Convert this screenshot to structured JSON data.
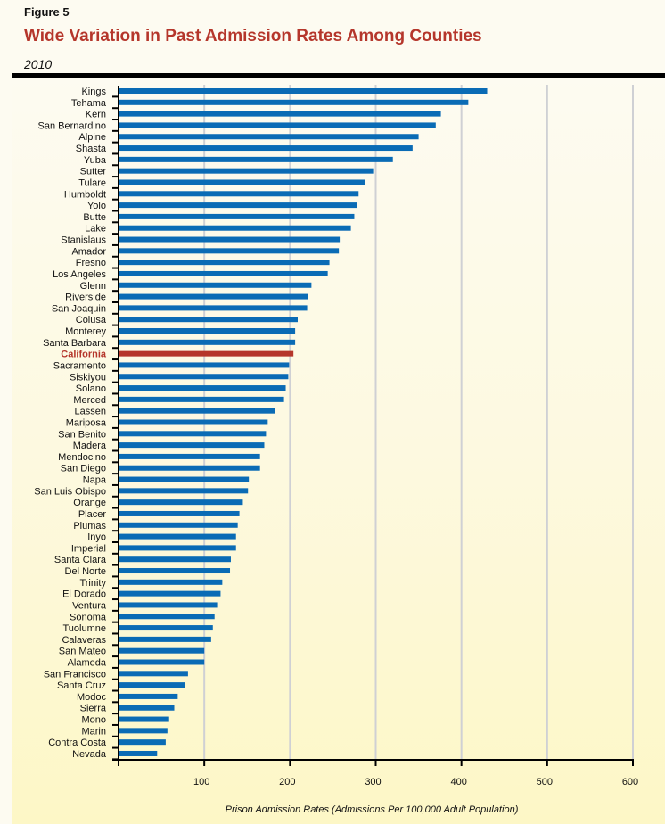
{
  "figure_label": "Figure 5",
  "title": "Wide Variation in Past Admission Rates Among Counties",
  "subtitle": "2010",
  "colors": {
    "bar": "#0a6bb5",
    "highlight": "#b5362b",
    "grid": "#cfd0d4",
    "title": "#b5362b"
  },
  "chart_data": {
    "type": "bar",
    "orientation": "horizontal",
    "xlabel": "Prison Admission Rates (Admissions Per 100,000 Adult Population)",
    "xlim": [
      0,
      600
    ],
    "xticks": [
      100,
      200,
      300,
      400,
      500,
      600
    ],
    "grid": true,
    "highlight": "California",
    "categories": [
      "Kings",
      "Tehama",
      "Kern",
      "San Bernardino",
      "Alpine",
      "Shasta",
      "Yuba",
      "Sutter",
      "Tulare",
      "Humboldt",
      "Yolo",
      "Butte",
      "Lake",
      "Stanislaus",
      "Amador",
      "Fresno",
      "Los Angeles",
      "Glenn",
      "Riverside",
      "San Joaquin",
      "Colusa",
      "Monterey",
      "Santa Barbara",
      "California",
      "Sacramento",
      "Siskiyou",
      "Solano",
      "Merced",
      "Lassen",
      "Mariposa",
      "San Benito",
      "Madera",
      "Mendocino",
      "San Diego",
      "Napa",
      "San Luis Obispo",
      "Orange",
      "Placer",
      "Plumas",
      "Inyo",
      "Imperial",
      "Santa Clara",
      "Del Norte",
      "Trinity",
      "El Dorado",
      "Ventura",
      "Sonoma",
      "Tuolumne",
      "Calaveras",
      "San Mateo",
      "Alameda",
      "San Francisco",
      "Santa Cruz",
      "Modoc",
      "Sierra",
      "Mono",
      "Marin",
      "Contra Costa",
      "Nevada"
    ],
    "values": [
      430,
      408,
      376,
      370,
      350,
      343,
      320,
      297,
      288,
      280,
      278,
      275,
      271,
      258,
      257,
      246,
      244,
      225,
      221,
      220,
      209,
      206,
      206,
      204,
      199,
      198,
      195,
      193,
      183,
      174,
      172,
      170,
      165,
      165,
      152,
      151,
      145,
      141,
      139,
      137,
      137,
      131,
      130,
      121,
      119,
      115,
      112,
      110,
      108,
      100,
      100,
      81,
      77,
      69,
      65,
      59,
      57,
      55,
      45
    ]
  }
}
